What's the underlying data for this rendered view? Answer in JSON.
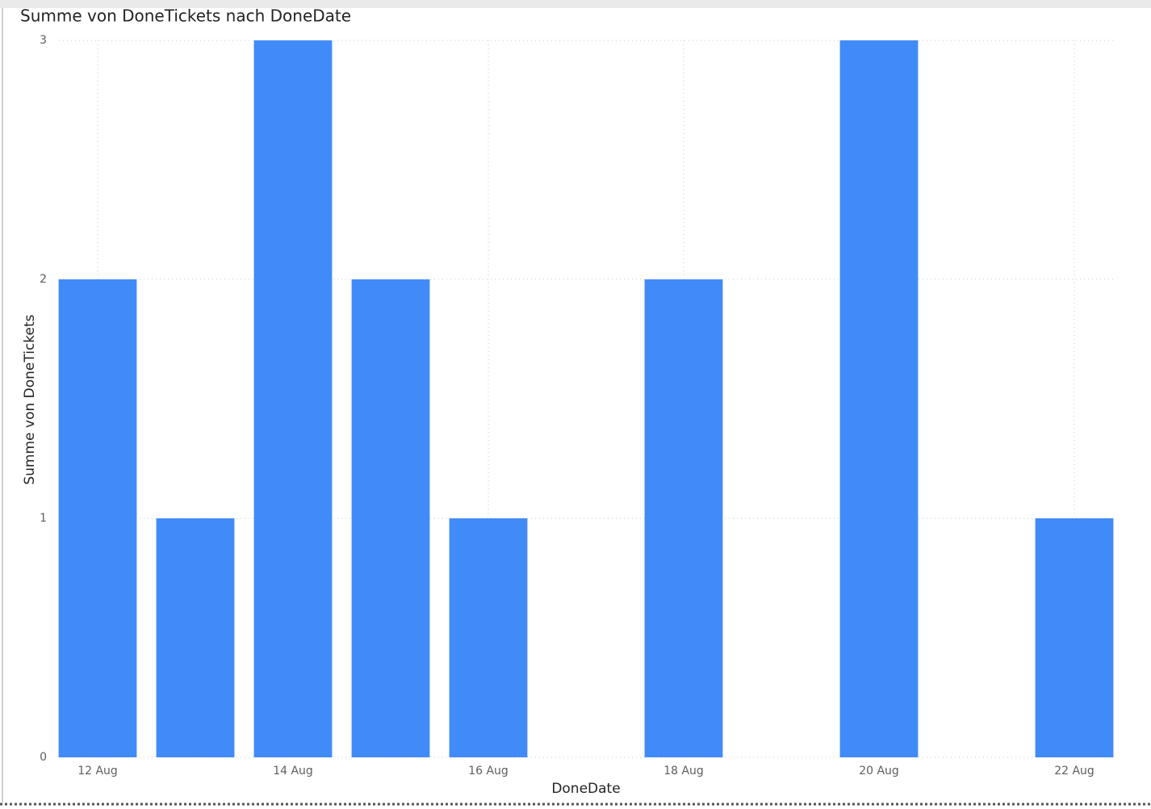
{
  "chart_data": {
    "type": "bar",
    "title": "Summe von DoneTickets nach DoneDate",
    "x_label": "DoneDate",
    "y_label": "Summe von DoneTickets",
    "categories": [
      "12 Aug",
      null,
      "14 Aug",
      null,
      "16 Aug",
      null,
      "18 Aug",
      null,
      "20 Aug",
      null,
      "22 Aug"
    ],
    "values": [
      2,
      1,
      3,
      2,
      1,
      null,
      2,
      null,
      3,
      null,
      1
    ],
    "color": "#418bf8",
    "ylim": [
      0,
      3
    ],
    "yticks": [
      0,
      1,
      2,
      3
    ],
    "grid": true
  }
}
